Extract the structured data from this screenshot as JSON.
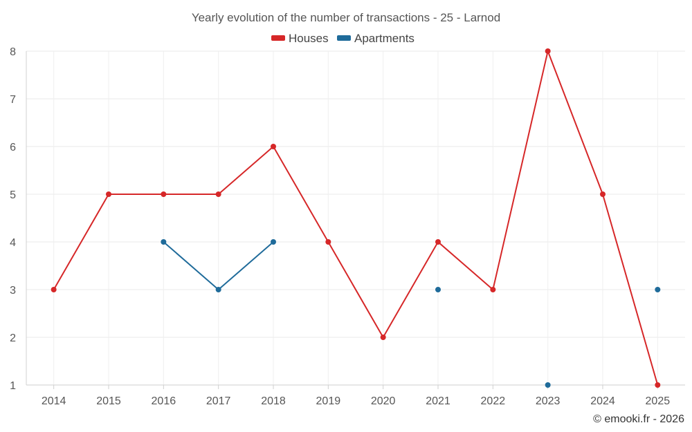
{
  "chart_data": {
    "type": "line",
    "title": "Yearly evolution of the number of transactions - 25 - Larnod",
    "xlabel": "",
    "ylabel": "",
    "categories": [
      "2014",
      "2015",
      "2016",
      "2017",
      "2018",
      "2019",
      "2020",
      "2021",
      "2022",
      "2023",
      "2024",
      "2025"
    ],
    "y_ticks": [
      "1",
      "2",
      "3",
      "4",
      "5",
      "6",
      "7",
      "8"
    ],
    "ylim": [
      1,
      8
    ],
    "grid": true,
    "legend_position": "top-center",
    "series": [
      {
        "name": "Houses",
        "color": "#d62728",
        "values": [
          3,
          5,
          5,
          5,
          6,
          4,
          2,
          4,
          3,
          8,
          5,
          1
        ]
      },
      {
        "name": "Apartments",
        "color": "#1f6b9a",
        "values": [
          null,
          null,
          4,
          3,
          4,
          null,
          null,
          3,
          null,
          1,
          null,
          3
        ]
      }
    ],
    "credit": "© emooki.fr - 2026"
  }
}
